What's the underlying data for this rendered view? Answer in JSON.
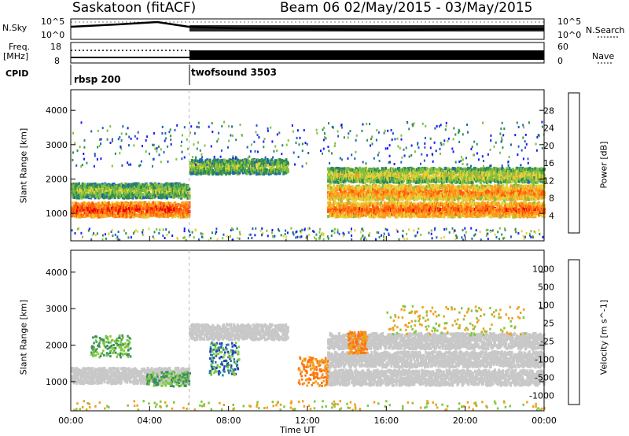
{
  "header": {
    "station": "Saskatoon (fitACF)",
    "beam_dates": "Beam 06 02/May/2015 - 03/May/2015"
  },
  "top_panel": {
    "nsky_label": "N.Sky",
    "nsearch_label": "N.Search",
    "left_ticks": [
      "10^5",
      "10^0"
    ],
    "right_ticks": [
      "10^5",
      "10^0"
    ],
    "freq_label": "Freq.",
    "freq_unit": "[MHz]",
    "freq_ticks": [
      "18",
      "8"
    ],
    "nave_label": "Nave",
    "nave_ticks": [
      "60",
      "0"
    ],
    "cpid_label": "CPID",
    "cpid_segments": [
      {
        "name": "rbsp 200",
        "start_hour": 0,
        "end_hour": 6
      },
      {
        "name": "twofsound 3503",
        "start_hour": 6,
        "end_hour": 24
      }
    ]
  },
  "chart_data": [
    {
      "type": "heatmap",
      "title": "",
      "parameter": "Power",
      "ylabel": "Slant Range [km]",
      "xlabel": "Time UT",
      "x_ticks": [
        "00:00",
        "04:00",
        "08:00",
        "12:00",
        "16:00",
        "20:00",
        "00:00"
      ],
      "x_range_hours": [
        0,
        24
      ],
      "y_ticks": [
        1000,
        2000,
        3000,
        4000
      ],
      "ylim": [
        200,
        4600
      ],
      "colorbar": {
        "label": "Power [dB]",
        "ticks": [
          "4",
          "8",
          "12",
          "16",
          "20",
          "24",
          "28"
        ],
        "range": [
          0,
          32
        ],
        "colors": [
          "#1a1aff",
          "#1f5fc0",
          "#2e8b57",
          "#7fbf3f",
          "#e6d23a",
          "#ff9a1f",
          "#ff5a0a",
          "#e80000"
        ]
      },
      "bands": [
        {
          "from_hour": 0,
          "to_hour": 6,
          "range_km": 1150,
          "level_db": 28
        },
        {
          "from_hour": 0,
          "to_hour": 6,
          "range_km": 1700,
          "level_db": 16
        },
        {
          "from_hour": 6,
          "to_hour": 11,
          "range_km": 2400,
          "level_db": 16
        },
        {
          "from_hour": 13,
          "to_hour": 24,
          "range_km": 2150,
          "level_db": 18
        },
        {
          "from_hour": 13,
          "to_hour": 24,
          "range_km": 1650,
          "level_db": 24
        },
        {
          "from_hour": 13,
          "to_hour": 24,
          "range_km": 1150,
          "level_db": 26
        }
      ]
    },
    {
      "type": "heatmap",
      "title": "",
      "parameter": "Velocity",
      "ylabel": "Slant Range [km]",
      "xlabel": "Time UT",
      "x_ticks": [
        "00:00",
        "04:00",
        "08:00",
        "12:00",
        "16:00",
        "20:00",
        "00:00"
      ],
      "x_range_hours": [
        0,
        24
      ],
      "y_ticks": [
        1000,
        2000,
        3000,
        4000
      ],
      "ylim": [
        200,
        4600
      ],
      "colorbar": {
        "label": "Velocity [m s^-1]",
        "ticks": [
          "1000",
          "500",
          "100",
          "25",
          "-25",
          "-100",
          "-500",
          "-1000"
        ],
        "colors": [
          "#1a3fc0",
          "#2a7fa0",
          "#3a8f5f",
          "#7fc83f",
          "#c8c8c8",
          "#f0a020",
          "#ff7010",
          "#e80000"
        ]
      }
    }
  ]
}
